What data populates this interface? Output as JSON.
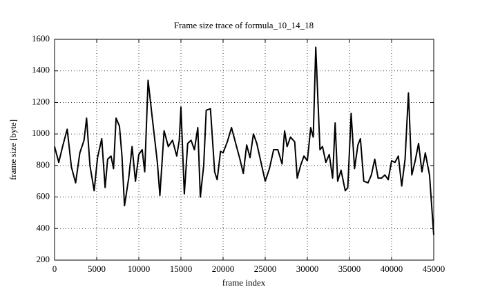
{
  "chart_data": {
    "type": "line",
    "title": "Frame size trace of formula_10_14_18",
    "x_label": "frame index",
    "y_label": "frame size [byte]",
    "x": [
      0,
      500,
      1000,
      1500,
      2000,
      2500,
      3000,
      3500,
      3800,
      4200,
      4700,
      5100,
      5600,
      6000,
      6300,
      6700,
      7000,
      7300,
      7700,
      8000,
      8300,
      8800,
      9200,
      9600,
      10000,
      10400,
      10700,
      11100,
      11600,
      12200,
      12500,
      13000,
      13500,
      14000,
      14500,
      14800,
      15000,
      15400,
      15800,
      16200,
      16600,
      17000,
      17300,
      17700,
      18000,
      18500,
      19000,
      19300,
      19700,
      20000,
      20500,
      21000,
      21500,
      22000,
      22400,
      22800,
      23200,
      23600,
      24000,
      24500,
      25000,
      25500,
      26000,
      26500,
      27000,
      27300,
      27600,
      28000,
      28500,
      28800,
      29200,
      29600,
      30000,
      30400,
      30700,
      31000,
      31500,
      31800,
      32200,
      32600,
      33000,
      33300,
      33600,
      34000,
      34500,
      34800,
      35200,
      35600,
      36000,
      36300,
      36700,
      37200,
      37600,
      38000,
      38400,
      38800,
      39200,
      39600,
      40000,
      40400,
      40800,
      41200,
      41600,
      42000,
      42400,
      42800,
      43200,
      43600,
      44000,
      44500,
      45000
    ],
    "values": [
      920,
      820,
      930,
      1030,
      790,
      690,
      880,
      960,
      1100,
      800,
      640,
      850,
      970,
      660,
      840,
      860,
      780,
      1100,
      1050,
      860,
      545,
      720,
      920,
      700,
      870,
      900,
      760,
      1340,
      1100,
      820,
      610,
      1020,
      920,
      960,
      860,
      960,
      1170,
      620,
      940,
      960,
      900,
      1040,
      600,
      800,
      1150,
      1160,
      760,
      710,
      890,
      880,
      950,
      1040,
      940,
      840,
      750,
      930,
      850,
      1000,
      940,
      820,
      700,
      780,
      900,
      900,
      810,
      1020,
      920,
      980,
      950,
      720,
      800,
      860,
      830,
      1040,
      980,
      1550,
      900,
      920,
      820,
      870,
      720,
      1070,
      700,
      770,
      640,
      660,
      1130,
      780,
      930,
      970,
      700,
      690,
      740,
      840,
      720,
      720,
      740,
      710,
      830,
      820,
      860,
      670,
      840,
      1260,
      740,
      830,
      940,
      760,
      880,
      740,
      360
    ],
    "color": "#000000",
    "xlim": [
      0,
      45000
    ],
    "xticks": [
      0,
      5000,
      10000,
      15000,
      20000,
      25000,
      30000,
      35000,
      40000,
      45000
    ],
    "ylim": [
      200,
      1600
    ],
    "yticks": [
      200,
      400,
      600,
      800,
      1000,
      1200,
      1400,
      1600
    ],
    "grid": true
  }
}
